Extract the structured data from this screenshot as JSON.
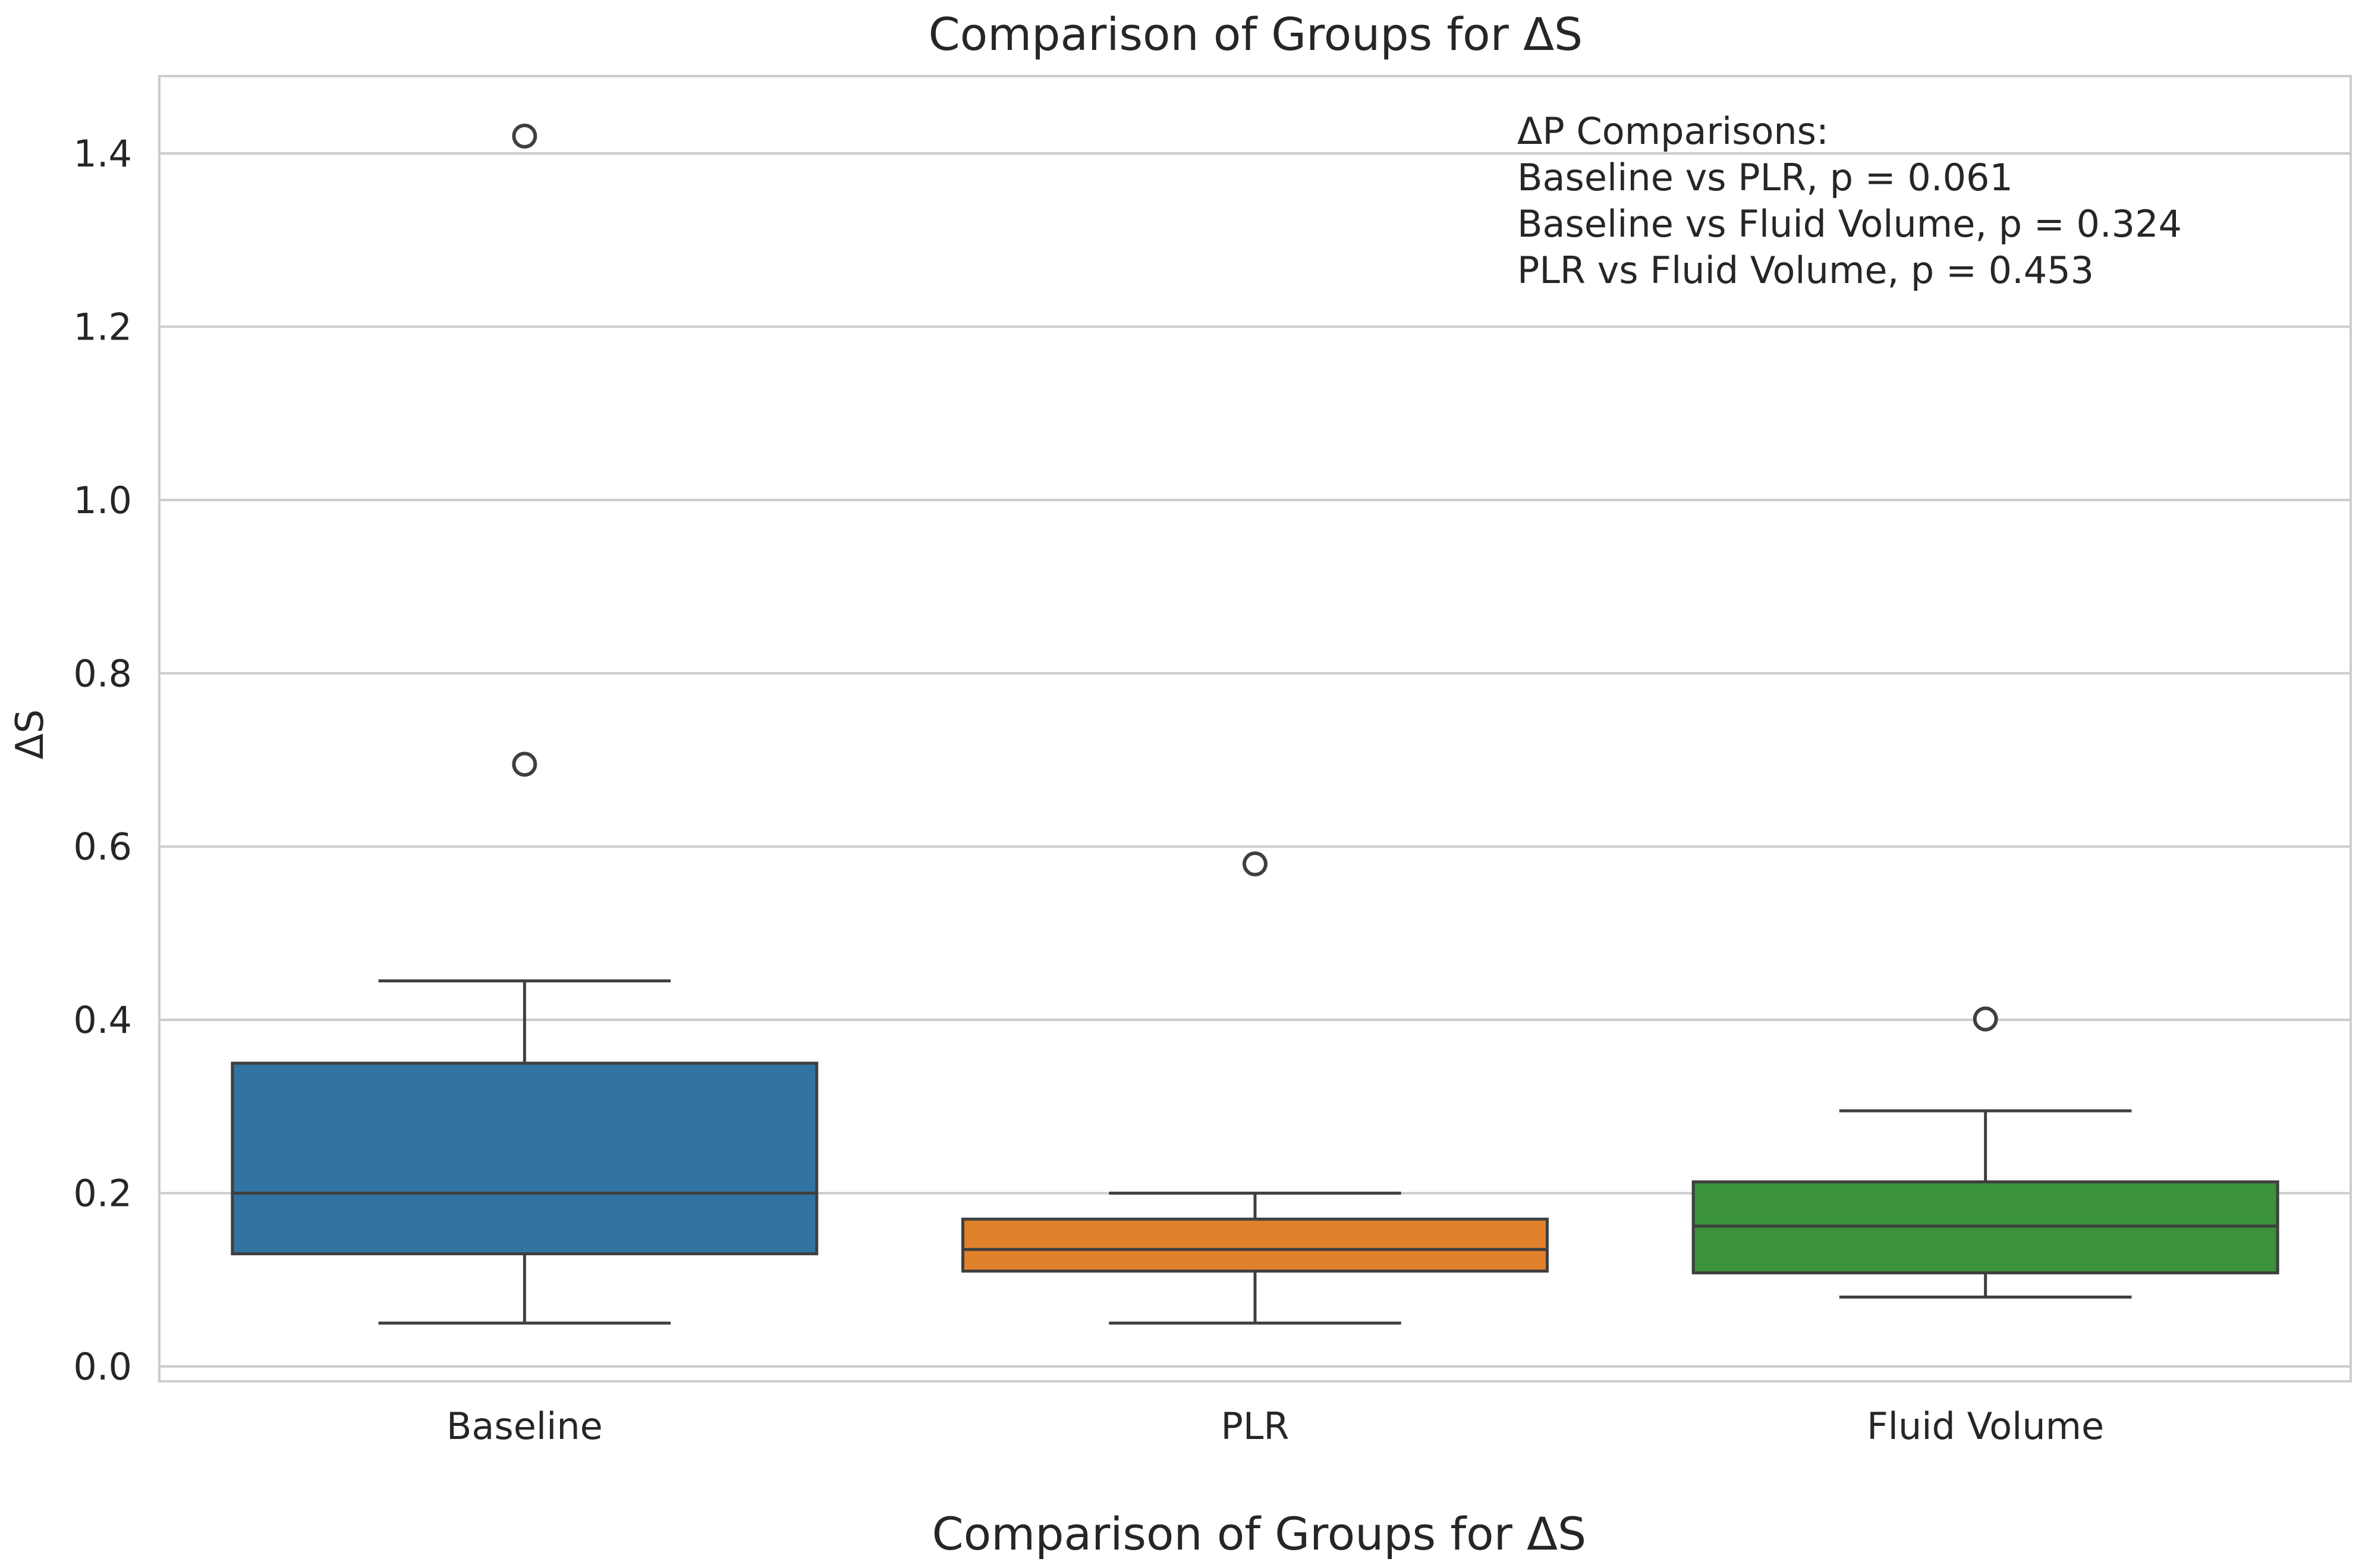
{
  "chart_data": {
    "type": "box",
    "title": "Comparison of Groups for ΔS",
    "xlabel": "Comparison of Groups for ΔS",
    "ylabel": "ΔS",
    "ylim": [
      -0.02,
      1.49
    ],
    "yticks": [
      "0.0",
      "0.2",
      "0.4",
      "0.6",
      "0.8",
      "1.0",
      "1.2",
      "1.4"
    ],
    "ytick_values": [
      0.0,
      0.2,
      0.4,
      0.6,
      0.8,
      1.0,
      1.2,
      1.4
    ],
    "grid": true,
    "categories": [
      "Baseline",
      "PLR",
      "Fluid Volume"
    ],
    "series": [
      {
        "category": "Baseline",
        "color": "#3274a1",
        "whisker_low": 0.05,
        "q1": 0.13,
        "median": 0.2,
        "q3": 0.35,
        "whisker_high": 0.445,
        "outliers": [
          0.695,
          1.42
        ]
      },
      {
        "category": "PLR",
        "color": "#e1812c",
        "whisker_low": 0.05,
        "q1": 0.11,
        "median": 0.135,
        "q3": 0.17,
        "whisker_high": 0.2,
        "outliers": [
          0.58
        ]
      },
      {
        "category": "Fluid Volume",
        "color": "#3a923a",
        "whisker_low": 0.08,
        "q1": 0.108,
        "median": 0.162,
        "q3": 0.213,
        "whisker_high": 0.295,
        "outliers": [
          0.401
        ]
      }
    ],
    "annotations": [
      "ΔP Comparisons:",
      "Baseline vs PLR, p = 0.061",
      "Baseline vs Fluid Volume, p = 0.324",
      "PLR vs Fluid Volume, p = 0.453"
    ],
    "colors": {
      "grid": "#cccccc",
      "frame": "#cccccc",
      "line": "#3f3f3f"
    }
  }
}
